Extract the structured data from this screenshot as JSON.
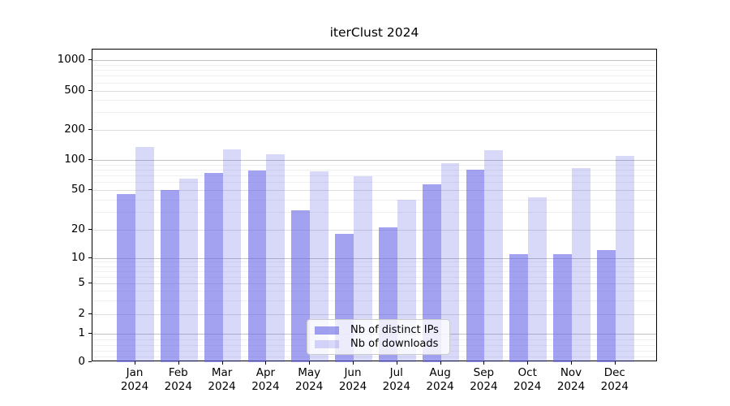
{
  "chart_data": {
    "type": "bar",
    "title": "iterClust 2024",
    "categories": [
      "Jan 2024",
      "Feb 2024",
      "Mar 2024",
      "Apr 2024",
      "May 2024",
      "Jun 2024",
      "Jul 2024",
      "Aug 2024",
      "Sep 2024",
      "Oct 2024",
      "Nov 2024",
      "Dec 2024"
    ],
    "series": [
      {
        "name": "Nb of distinct IPs",
        "color": "rgba(100,100,230,0.6)",
        "values": [
          45,
          50,
          74,
          78,
          31,
          18,
          21,
          57,
          79,
          11,
          11,
          12
        ]
      },
      {
        "name": "Nb of downloads",
        "color": "rgba(100,100,230,0.25)",
        "values": [
          135,
          65,
          127,
          113,
          77,
          69,
          40,
          92,
          125,
          42,
          83,
          110
        ]
      }
    ],
    "yscale": "symlog",
    "y_ticks": [
      0,
      1,
      2,
      5,
      10,
      20,
      50,
      100,
      200,
      500,
      1000
    ],
    "ylim": [
      0,
      1000
    ],
    "xlabel": "",
    "ylabel": "",
    "grid": true,
    "legend_position": "lower center"
  }
}
